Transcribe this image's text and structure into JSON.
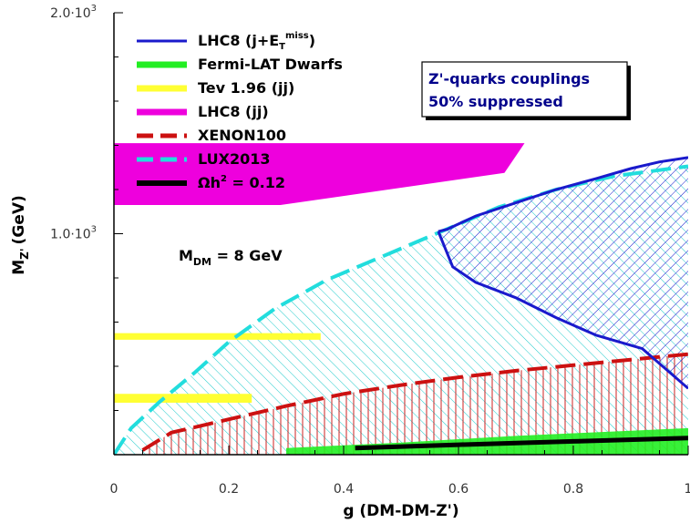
{
  "chart_data": {
    "type": "area",
    "xlabel_main": "g (DM-DM-Z')",
    "ylabel_main": "M",
    "ylabel_sub": "Z'",
    "ylabel_unit": "(GeV)",
    "xlim": [
      0,
      1
    ],
    "ylim": [
      0,
      2000
    ],
    "x_ticks": [
      {
        "value": 0,
        "label": "0"
      },
      {
        "value": 0.2,
        "label": "0.2"
      },
      {
        "value": 0.4,
        "label": "0.4"
      },
      {
        "value": 0.6,
        "label": "0.6"
      },
      {
        "value": 0.8,
        "label": "0.8"
      },
      {
        "value": 1.0,
        "label": "1"
      }
    ],
    "y_ticks": [
      {
        "value": 1000,
        "label": "1.0·10",
        "exp": "3"
      },
      {
        "value": 2000,
        "label": "2.0·10",
        "exp": "3"
      }
    ],
    "annotation_box": {
      "line1": "Z'-quarks couplings",
      "line2": "50% suppressed"
    },
    "mass_label": {
      "main": "M",
      "sub": "DM",
      "rest": " = 8 GeV"
    },
    "legend_position": "top-left",
    "series": [
      {
        "name": "LHC8 (j+E",
        "name_sub": "T",
        "name_sup": "miss",
        "name_end": ")",
        "style": "line",
        "color": "#1a1acc",
        "boundary": [
          [
            0.565,
            1010
          ],
          [
            0.58,
            1020
          ],
          [
            0.63,
            1080
          ],
          [
            0.7,
            1140
          ],
          [
            0.77,
            1200
          ],
          [
            0.84,
            1250
          ],
          [
            0.9,
            1295
          ],
          [
            0.95,
            1325
          ],
          [
            1.0,
            1345
          ]
        ],
        "lower_boundary": [
          [
            0.565,
            1010
          ],
          [
            0.59,
            850
          ],
          [
            0.63,
            780
          ],
          [
            0.7,
            710
          ],
          [
            0.77,
            620
          ],
          [
            0.84,
            540
          ],
          [
            0.92,
            480
          ],
          [
            1.0,
            300
          ]
        ]
      },
      {
        "name": "Fermi-LAT Dwarfs",
        "style": "band",
        "color": "#22ee22",
        "boundary": [
          [
            0.3,
            30
          ],
          [
            0.5,
            55
          ],
          [
            0.6,
            70
          ],
          [
            0.7,
            85
          ],
          [
            0.8,
            97
          ],
          [
            0.9,
            108
          ],
          [
            1.0,
            120
          ]
        ]
      },
      {
        "name": "Tev 1.96 (jj)",
        "style": "band",
        "color": "#ffff33",
        "bands": [
          [
            [
              0,
              550
            ],
            [
              0.36,
              550
            ],
            [
              0.36,
              520
            ],
            [
              0,
              520
            ]
          ],
          [
            [
              0,
              275
            ],
            [
              0.24,
              275
            ],
            [
              0.24,
              235
            ],
            [
              0,
              235
            ]
          ]
        ]
      },
      {
        "name": "LHC8 (jj)",
        "style": "band",
        "color": "#ee00dd",
        "region": [
          [
            0,
            1130
          ],
          [
            0.29,
            1130
          ],
          [
            0.68,
            1275
          ],
          [
            0.715,
            1410
          ],
          [
            0,
            1410
          ]
        ]
      },
      {
        "name": "XENON100",
        "style": "dashed",
        "color": "#cc1111",
        "boundary": [
          [
            0.05,
            20
          ],
          [
            0.1,
            100
          ],
          [
            0.2,
            160
          ],
          [
            0.3,
            220
          ],
          [
            0.4,
            275
          ],
          [
            0.5,
            315
          ],
          [
            0.6,
            350
          ],
          [
            0.7,
            380
          ],
          [
            0.8,
            405
          ],
          [
            0.9,
            430
          ],
          [
            1.0,
            455
          ]
        ]
      },
      {
        "name": "LUX2013",
        "style": "dashed",
        "color": "#22dddd",
        "boundary": [
          [
            0,
            0
          ],
          [
            0.03,
            120
          ],
          [
            0.08,
            240
          ],
          [
            0.14,
            370
          ],
          [
            0.2,
            510
          ],
          [
            0.28,
            660
          ],
          [
            0.37,
            790
          ],
          [
            0.47,
            900
          ],
          [
            0.57,
            1010
          ],
          [
            0.67,
            1120
          ],
          [
            0.77,
            1200
          ],
          [
            0.87,
            1260
          ],
          [
            1.0,
            1305
          ]
        ]
      },
      {
        "name": "Ωh",
        "name_sup": "2",
        "name_end": " = 0.12",
        "style": "line",
        "color": "#000000",
        "boundary": [
          [
            0.42,
            30
          ],
          [
            0.6,
            45
          ],
          [
            0.8,
            60
          ],
          [
            1.0,
            75
          ]
        ]
      }
    ]
  }
}
